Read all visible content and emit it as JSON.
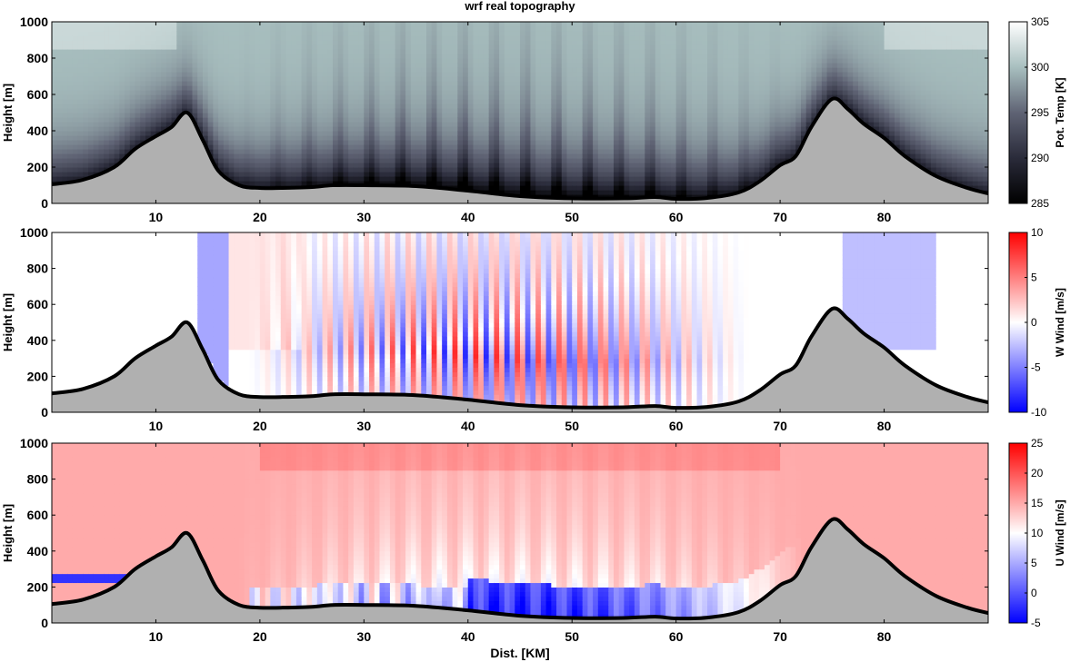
{
  "title": "wrf real topography",
  "xlabel": "Dist. [KM]",
  "colors": {
    "terrain": "#b0b0b0",
    "terrain_outline": "#000000"
  },
  "chart_data": [
    {
      "type": "heatmap",
      "name": "potential-temperature",
      "ylabel": "Height [m]",
      "xlim": [
        0,
        90
      ],
      "ylim": [
        0,
        1000
      ],
      "x_ticks": [
        10,
        20,
        30,
        40,
        50,
        60,
        70,
        80
      ],
      "y_ticks": [
        0,
        200,
        400,
        600,
        800,
        1000
      ],
      "colorbar": {
        "label": "Pot. Temp [K]",
        "range": [
          285,
          305
        ],
        "ticks": [
          285,
          290,
          295,
          300,
          305
        ],
        "colors": [
          "#000000",
          "#2a2b3a",
          "#5f6374",
          "#a8bfbf",
          "#ffffff"
        ]
      }
    },
    {
      "type": "heatmap",
      "name": "vertical-wind",
      "ylabel": "Height [m]",
      "xlim": [
        0,
        90
      ],
      "ylim": [
        0,
        1000
      ],
      "x_ticks": [
        10,
        20,
        30,
        40,
        50,
        60,
        70,
        80
      ],
      "y_ticks": [
        0,
        200,
        400,
        600,
        800,
        1000
      ],
      "colorbar": {
        "label": "W Wind [m/s]",
        "range": [
          -10,
          10
        ],
        "ticks": [
          -10,
          -5,
          0,
          5,
          10
        ],
        "colors": [
          "#0000ff",
          "#ffffff",
          "#ff0000"
        ]
      }
    },
    {
      "type": "heatmap",
      "name": "horizontal-wind",
      "ylabel": "Height [m]",
      "xlim": [
        0,
        90
      ],
      "ylim": [
        0,
        1000
      ],
      "x_ticks": [
        10,
        20,
        30,
        40,
        50,
        60,
        70,
        80
      ],
      "y_ticks": [
        0,
        200,
        400,
        600,
        800,
        1000
      ],
      "colorbar": {
        "label": "U Wind [m/s]",
        "range": [
          -5,
          25
        ],
        "ticks": [
          -5,
          0,
          5,
          10,
          15,
          20,
          25
        ],
        "colors": [
          "#0000ff",
          "#ffffff",
          "#ff0000"
        ]
      }
    }
  ],
  "terrain": {
    "x": [
      0,
      3,
      6,
      8,
      10,
      11.5,
      13,
      14.5,
      16,
      18,
      20,
      22,
      25,
      27,
      30,
      35,
      40,
      45,
      50,
      55,
      58,
      60,
      63,
      66,
      68,
      70,
      71.5,
      73,
      75,
      76.5,
      78,
      80,
      82,
      85,
      88,
      90
    ],
    "y": [
      105,
      130,
      200,
      300,
      370,
      420,
      500,
      350,
      180,
      100,
      85,
      85,
      90,
      100,
      100,
      95,
      70,
      40,
      28,
      28,
      35,
      25,
      30,
      60,
      120,
      210,
      260,
      420,
      575,
      520,
      440,
      360,
      260,
      150,
      85,
      55
    ]
  }
}
